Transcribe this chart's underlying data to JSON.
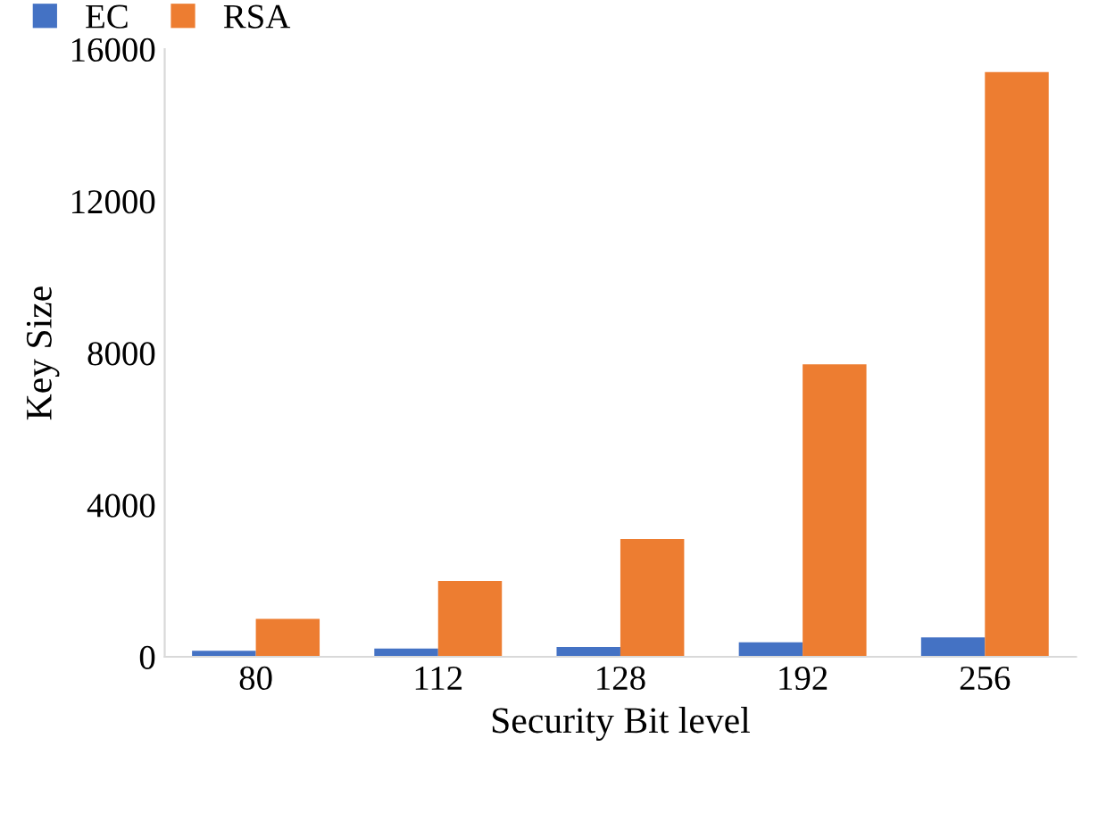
{
  "chart_data": {
    "type": "bar",
    "xlabel": "Security Bit level",
    "ylabel": "Key Size",
    "categories": [
      "80",
      "112",
      "128",
      "192",
      "256"
    ],
    "series": [
      {
        "name": "EC",
        "color": "#4472c4",
        "values": [
          160,
          220,
          260,
          380,
          510
        ]
      },
      {
        "name": "RSA",
        "color": "#ed7d31",
        "values": [
          1000,
          2000,
          3100,
          7700,
          15400
        ]
      }
    ],
    "ylim": [
      0,
      16000
    ],
    "yticks": [
      0,
      4000,
      8000,
      12000,
      16000
    ],
    "grid": false,
    "legend": "top left"
  }
}
